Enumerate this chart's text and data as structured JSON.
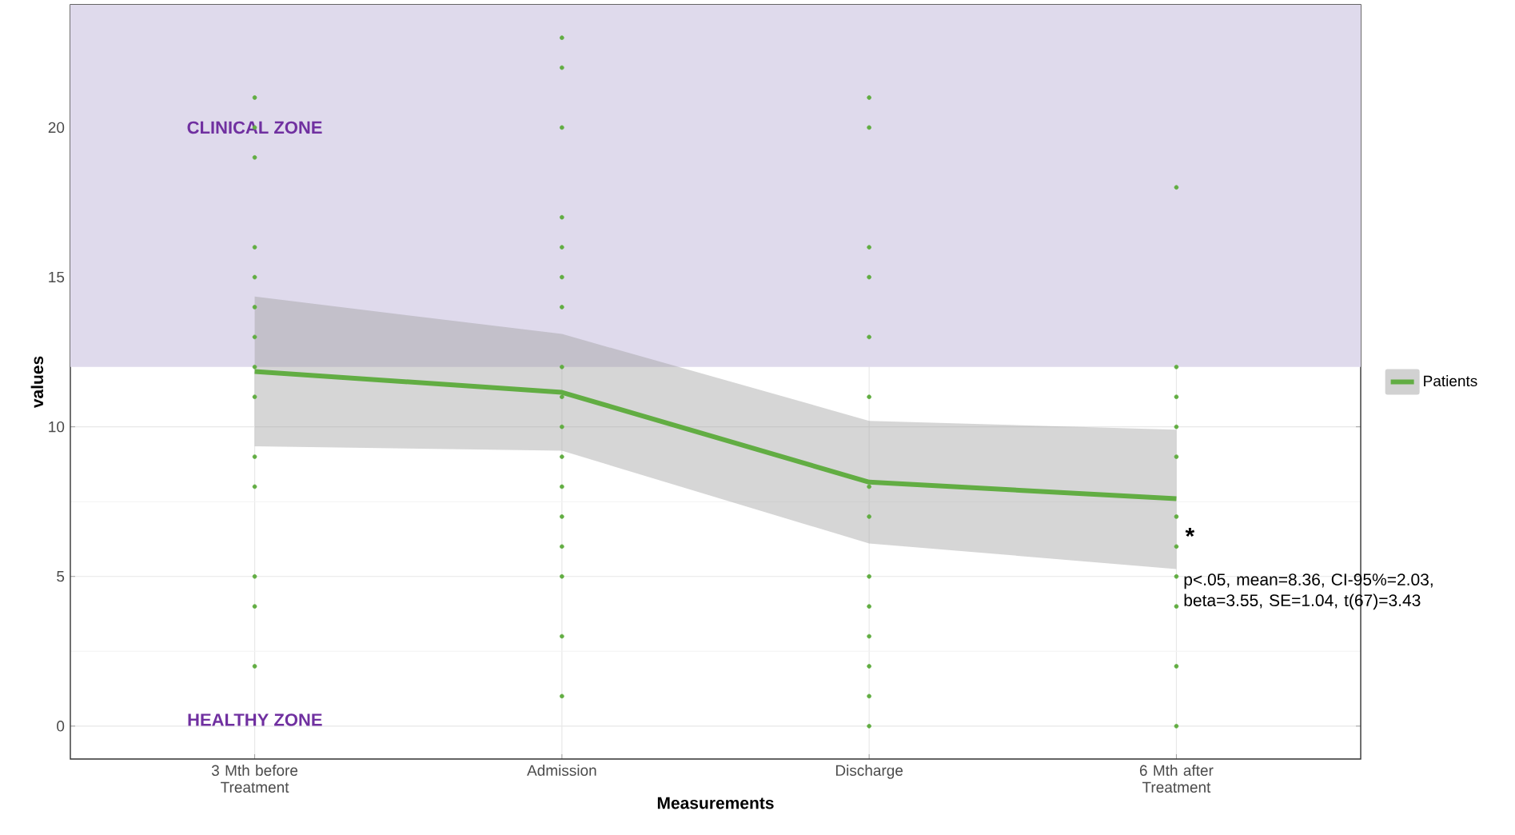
{
  "chart_data": {
    "type": "line",
    "xlabel": "Measurements",
    "ylabel": "values",
    "categories": [
      "3 Mth before Treatment",
      "Admission",
      "Discharge",
      "6 Mth after Treatment"
    ],
    "series": [
      {
        "name": "Patients",
        "color": "#62ad43",
        "values": [
          11.85,
          11.15,
          8.15,
          7.6
        ],
        "lower": [
          9.35,
          9.2,
          6.1,
          5.25
        ],
        "upper": [
          14.35,
          13.1,
          10.2,
          9.9
        ]
      },
      {
        "type": "scatter",
        "color": "#62ad43",
        "marker": "circle",
        "x": [
          "3 Mth before Treatment",
          "3 Mth before Treatment",
          "3 Mth before Treatment",
          "3 Mth before Treatment",
          "3 Mth before Treatment",
          "3 Mth before Treatment",
          "3 Mth before Treatment",
          "3 Mth before Treatment",
          "3 Mth before Treatment",
          "3 Mth before Treatment",
          "3 Mth before Treatment",
          "3 Mth before Treatment",
          "3 Mth before Treatment",
          "3 Mth before Treatment",
          "Admission",
          "Admission",
          "Admission",
          "Admission",
          "Admission",
          "Admission",
          "Admission",
          "Admission",
          "Admission",
          "Admission",
          "Admission",
          "Admission",
          "Admission",
          "Admission",
          "Admission",
          "Admission",
          "Admission",
          "Discharge",
          "Discharge",
          "Discharge",
          "Discharge",
          "Discharge",
          "Discharge",
          "Discharge",
          "Discharge",
          "Discharge",
          "Discharge",
          "Discharge",
          "Discharge",
          "Discharge",
          "Discharge",
          "6 Mth after Treatment",
          "6 Mth after Treatment",
          "6 Mth after Treatment",
          "6 Mth after Treatment",
          "6 Mth after Treatment",
          "6 Mth after Treatment",
          "6 Mth after Treatment",
          "6 Mth after Treatment",
          "6 Mth after Treatment",
          "6 Mth after Treatment",
          "6 Mth after Treatment"
        ],
        "values": [
          21,
          20,
          19,
          16,
          15,
          14,
          13,
          12,
          11,
          9,
          8,
          5,
          4,
          2,
          23,
          22,
          20,
          17,
          16,
          15,
          14,
          12,
          11,
          10,
          9,
          8,
          7,
          6,
          5,
          3,
          1,
          21,
          20,
          16,
          15,
          13,
          11,
          8,
          7,
          5,
          4,
          3,
          2,
          1,
          0,
          18,
          12,
          11,
          10,
          9,
          7,
          6,
          5,
          4,
          2,
          0
        ]
      }
    ],
    "ylim": [
      -1.1,
      24.1
    ],
    "yticks": [
      0,
      5,
      10,
      15,
      20
    ],
    "grid": true,
    "legend": "right",
    "bands": [
      {
        "axis": "y",
        "from": 12,
        "to": 24.1,
        "color": "#dfdaec"
      }
    ],
    "annotations": [
      {
        "text": "CLINICAL ZONE",
        "x": "3 Mth before Treatment",
        "y": 20
      },
      "HEALTHY ZONE",
      {
        "text": "*",
        "x": "6 Mth after Treatment",
        "y": 6.35
      },
      "p<.05, mean=8.36, CI-95%=2.03, beta=3.55,  SE=1.04, t(67)=3.43"
    ]
  }
}
